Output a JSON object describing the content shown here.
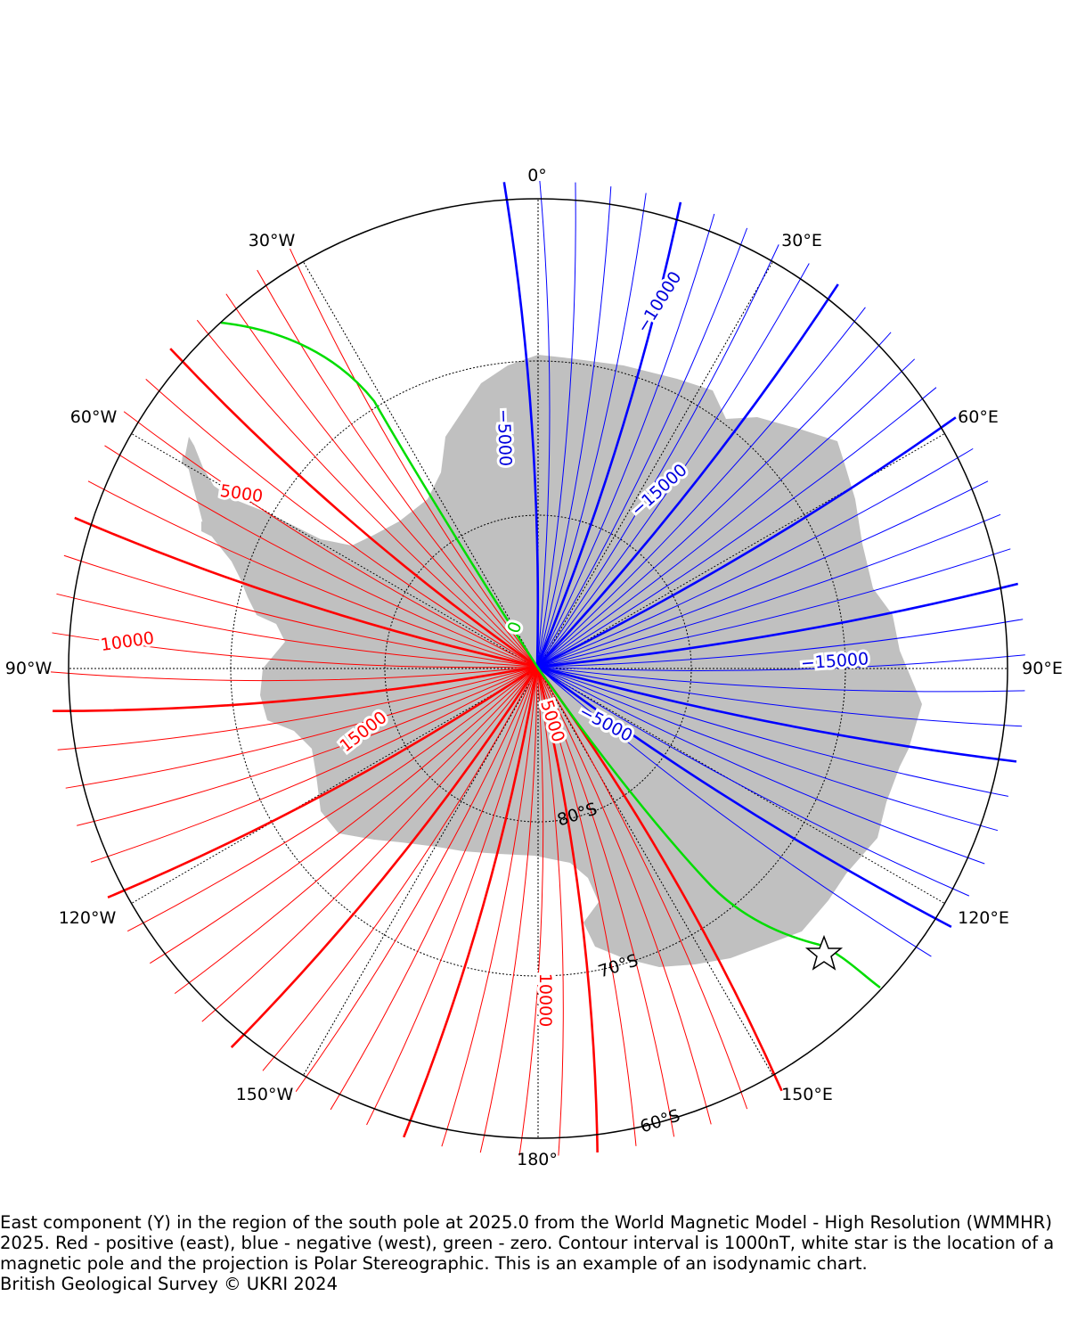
{
  "map": {
    "meridian_labels": [
      {
        "lon": 0,
        "text": "0°"
      },
      {
        "lon": 30,
        "text": "30°E"
      },
      {
        "lon": 60,
        "text": "60°E"
      },
      {
        "lon": 90,
        "text": "90°E"
      },
      {
        "lon": 120,
        "text": "120°E"
      },
      {
        "lon": 150,
        "text": "150°E"
      },
      {
        "lon": 180,
        "text": "180°"
      },
      {
        "lon": -150,
        "text": "150°W"
      },
      {
        "lon": -120,
        "text": "120°W"
      },
      {
        "lon": -90,
        "text": "90°W"
      },
      {
        "lon": -60,
        "text": "60°W"
      },
      {
        "lon": -30,
        "text": "30°W"
      }
    ],
    "parallel_labels": [
      {
        "lat": -80,
        "text": "80°S"
      },
      {
        "lat": -70,
        "text": "70°S"
      },
      {
        "lat": -60,
        "text": "60°S"
      }
    ],
    "contour_labels": [
      {
        "text": "0",
        "color": "#00cc00"
      },
      {
        "text": "5000",
        "color": "#ff0000"
      },
      {
        "text": "5000",
        "color": "#ff0000"
      },
      {
        "text": "10000",
        "color": "#ff0000"
      },
      {
        "text": "15000",
        "color": "#ff0000"
      },
      {
        "text": "10000",
        "color": "#ff0000"
      },
      {
        "text": "−5000",
        "color": "#0000dd"
      },
      {
        "text": "−10000",
        "color": "#0000dd"
      },
      {
        "text": "−15000",
        "color": "#0000dd"
      },
      {
        "text": "−15000",
        "color": "#0000dd"
      },
      {
        "text": "−5000",
        "color": "#0000dd"
      }
    ],
    "colors": {
      "positive": "#ff0000",
      "negative": "#0000ff",
      "zero": "#00dd00",
      "land": "#c0c0c0"
    },
    "marker": "star-icon"
  },
  "caption": {
    "text": "East component (Y) in the region of the south pole at 2025.0 from the World Magnetic Model - High Resolution (WMMHR) 2025. Red - positive (east), blue - negative (west), green - zero. Contour interval is 1000nT, white star is the location of a magnetic pole and the projection is Polar Stereographic. This is an example of an isodynamic chart.",
    "credit": "British Geological Survey © UKRI 2024"
  }
}
